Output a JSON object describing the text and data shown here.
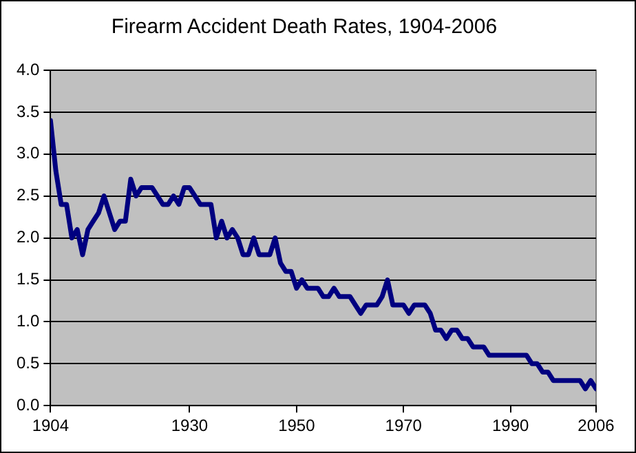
{
  "chart_data": {
    "type": "line",
    "title": "Firearm Accident Death Rates, 1904-2006",
    "x": [
      1904,
      1905,
      1906,
      1907,
      1908,
      1909,
      1910,
      1911,
      1912,
      1913,
      1914,
      1915,
      1916,
      1917,
      1918,
      1919,
      1920,
      1921,
      1922,
      1923,
      1924,
      1925,
      1926,
      1927,
      1928,
      1929,
      1930,
      1931,
      1932,
      1933,
      1934,
      1935,
      1936,
      1937,
      1938,
      1939,
      1940,
      1941,
      1942,
      1943,
      1944,
      1945,
      1946,
      1947,
      1948,
      1949,
      1950,
      1951,
      1952,
      1953,
      1954,
      1955,
      1956,
      1957,
      1958,
      1959,
      1960,
      1961,
      1962,
      1963,
      1964,
      1965,
      1966,
      1967,
      1968,
      1969,
      1970,
      1971,
      1972,
      1973,
      1974,
      1975,
      1976,
      1977,
      1978,
      1979,
      1980,
      1981,
      1982,
      1983,
      1984,
      1985,
      1986,
      1987,
      1988,
      1989,
      1990,
      1991,
      1992,
      1993,
      1994,
      1995,
      1996,
      1997,
      1998,
      1999,
      2000,
      2001,
      2002,
      2003,
      2004,
      2005,
      2006
    ],
    "series": [
      {
        "color": "#000080",
        "values": [
          3.4,
          2.8,
          2.4,
          2.4,
          2.0,
          2.1,
          1.8,
          2.1,
          2.2,
          2.3,
          2.5,
          2.3,
          2.1,
          2.2,
          2.2,
          2.7,
          2.5,
          2.6,
          2.6,
          2.6,
          2.5,
          2.4,
          2.4,
          2.5,
          2.4,
          2.6,
          2.6,
          2.5,
          2.4,
          2.4,
          2.4,
          2.0,
          2.2,
          2.0,
          2.1,
          2.0,
          1.8,
          1.8,
          2.0,
          1.8,
          1.8,
          1.8,
          2.0,
          1.7,
          1.6,
          1.6,
          1.4,
          1.5,
          1.4,
          1.4,
          1.4,
          1.3,
          1.3,
          1.4,
          1.3,
          1.3,
          1.3,
          1.2,
          1.1,
          1.2,
          1.2,
          1.2,
          1.3,
          1.5,
          1.2,
          1.2,
          1.2,
          1.1,
          1.2,
          1.2,
          1.2,
          1.1,
          0.9,
          0.9,
          0.8,
          0.9,
          0.9,
          0.8,
          0.8,
          0.7,
          0.7,
          0.7,
          0.6,
          0.6,
          0.6,
          0.6,
          0.6,
          0.6,
          0.6,
          0.6,
          0.5,
          0.5,
          0.4,
          0.4,
          0.3,
          0.3,
          0.3,
          0.3,
          0.3,
          0.3,
          0.2,
          0.3,
          0.2
        ]
      }
    ],
    "xlim": [
      1904,
      2006
    ],
    "xticks": [
      1904,
      1930,
      1950,
      1970,
      1990,
      2006
    ],
    "ylim": [
      0,
      4.0
    ],
    "yticks": [
      {
        "value": 0,
        "label": "0.0"
      },
      {
        "value": 0.5,
        "label": "0.5"
      },
      {
        "value": 1,
        "label": "1.0"
      },
      {
        "value": 1.5,
        "label": "1.5"
      },
      {
        "value": 2,
        "label": "2.0"
      },
      {
        "value": 2.5,
        "label": "2.5"
      },
      {
        "value": 3,
        "label": "3.0"
      },
      {
        "value": 3.5,
        "label": "3.5"
      },
      {
        "value": 4,
        "label": "4.0"
      }
    ],
    "grid": "y",
    "legend": false,
    "marker": "none",
    "line_style": "solid"
  }
}
